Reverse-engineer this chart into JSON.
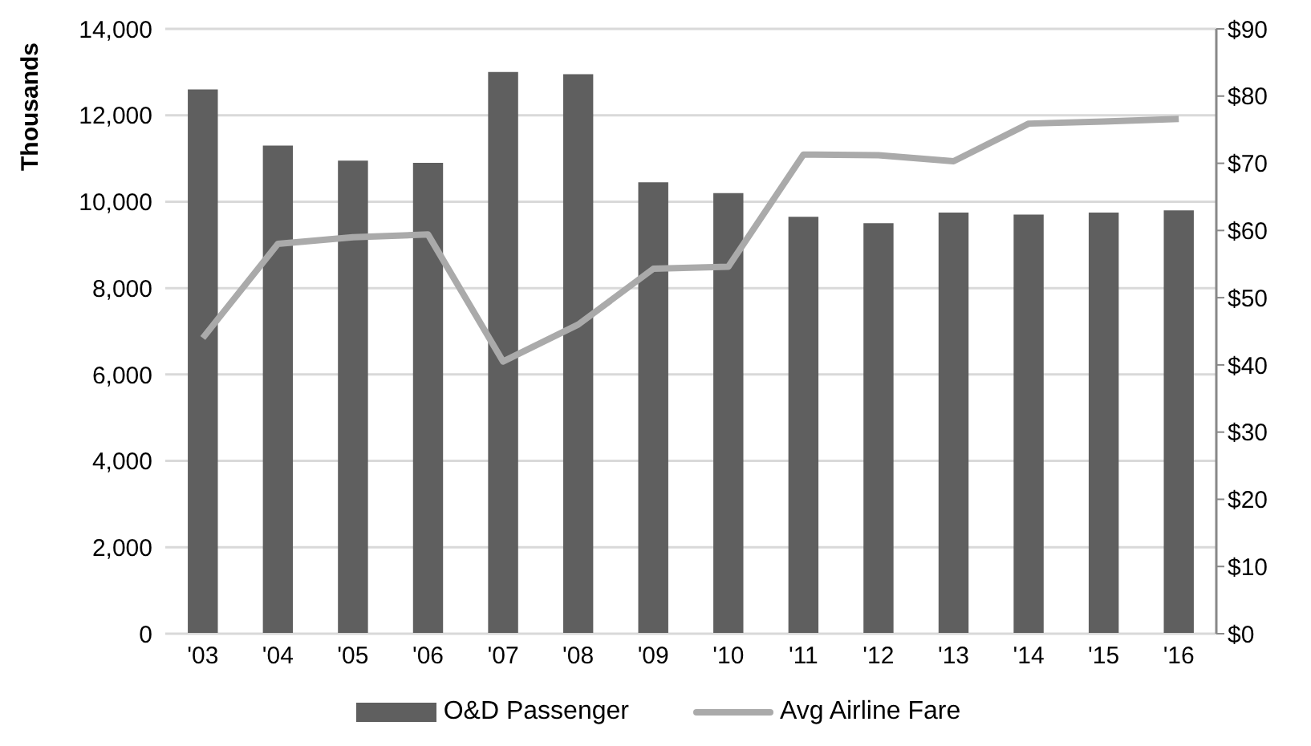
{
  "chart_data": {
    "type": "bar",
    "ylabel": "Thousands",
    "categories": [
      "'03",
      "'04",
      "'05",
      "'06",
      "'07",
      "'08",
      "'09",
      "'10",
      "'11",
      "'12",
      "'13",
      "'14",
      "'15",
      "'16"
    ],
    "series": [
      {
        "name": "O&D Passenger",
        "color": "#5f5f5f",
        "values": [
          12600,
          11300,
          10950,
          10900,
          13000,
          12950,
          10450,
          10200,
          9650,
          9500,
          9750,
          9700,
          9750,
          9800
        ]
      },
      {
        "name": "Avg Airline Fare",
        "type": "line",
        "axis": "y2",
        "color": "#aaaaaa",
        "values": [
          44,
          58,
          59,
          59.4,
          40.5,
          46,
          54.3,
          54.6,
          71.3,
          71.2,
          70.3,
          75.9,
          76.2,
          76.6
        ]
      }
    ],
    "ylim": [
      0,
      14000
    ],
    "yticks": [
      0,
      {
        "value": 2000,
        "label": "2,000"
      },
      {
        "value": 4000,
        "label": "4,000"
      },
      {
        "value": 6000,
        "label": "6,000"
      },
      {
        "value": 8000,
        "label": "8,000"
      },
      {
        "value": 10000,
        "label": "10,000"
      },
      {
        "value": 12000,
        "label": "12,000"
      },
      {
        "value": 14000,
        "label": "14,000"
      }
    ],
    "y2lim": [
      0,
      90
    ],
    "y2ticks": [
      {
        "value": 0,
        "label": "$0"
      },
      {
        "value": 10,
        "label": "$10"
      },
      {
        "value": 20,
        "label": "$20"
      },
      {
        "value": 30,
        "label": "$30"
      },
      {
        "value": 40,
        "label": "$40"
      },
      {
        "value": 50,
        "label": "$50"
      },
      {
        "value": 60,
        "label": "$60"
      },
      {
        "value": 70,
        "label": "$70"
      },
      {
        "value": 80,
        "label": "$80"
      },
      {
        "value": 90,
        "label": "$90"
      }
    ],
    "grid": "y",
    "legend": "bottom",
    "marker": "none"
  }
}
